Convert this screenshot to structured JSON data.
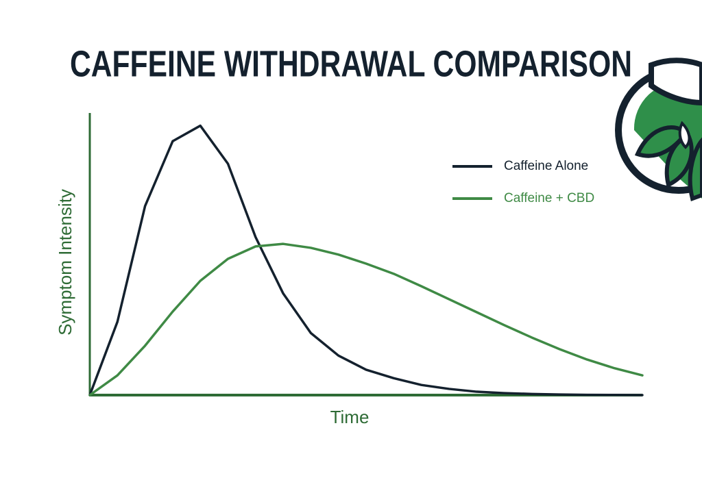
{
  "chart_data": {
    "type": "line",
    "title": "CAFFEINE WITHDRAWAL COMPARISON",
    "x_label": "Time",
    "y_label": "Symptom Intensity",
    "x": [
      0,
      5,
      10,
      15,
      20,
      25,
      30,
      35,
      40,
      45,
      50,
      55,
      60,
      65,
      70,
      75,
      80,
      85,
      90,
      95,
      100
    ],
    "series": [
      {
        "name": "Caffeine Alone",
        "color": "#14212e",
        "values": [
          0,
          26,
          67,
          90,
          95.5,
          82,
          56,
          36,
          22,
          14,
          9,
          6,
          3.6,
          2.2,
          1.2,
          0.7,
          0.4,
          0.2,
          0.1,
          0.05,
          0
        ]
      },
      {
        "name": "Caffeine + CBD",
        "color": "#3f8a45",
        "values": [
          0,
          7,
          17.5,
          29.6,
          40.5,
          48.3,
          52.7,
          53.6,
          52.2,
          49.8,
          46.6,
          43,
          38.6,
          34,
          29.4,
          24.8,
          20.4,
          16.3,
          12.6,
          9.5,
          7
        ]
      }
    ],
    "xlim": [
      0,
      100
    ],
    "ylim": [
      0,
      100
    ],
    "legend": "upper right"
  }
}
